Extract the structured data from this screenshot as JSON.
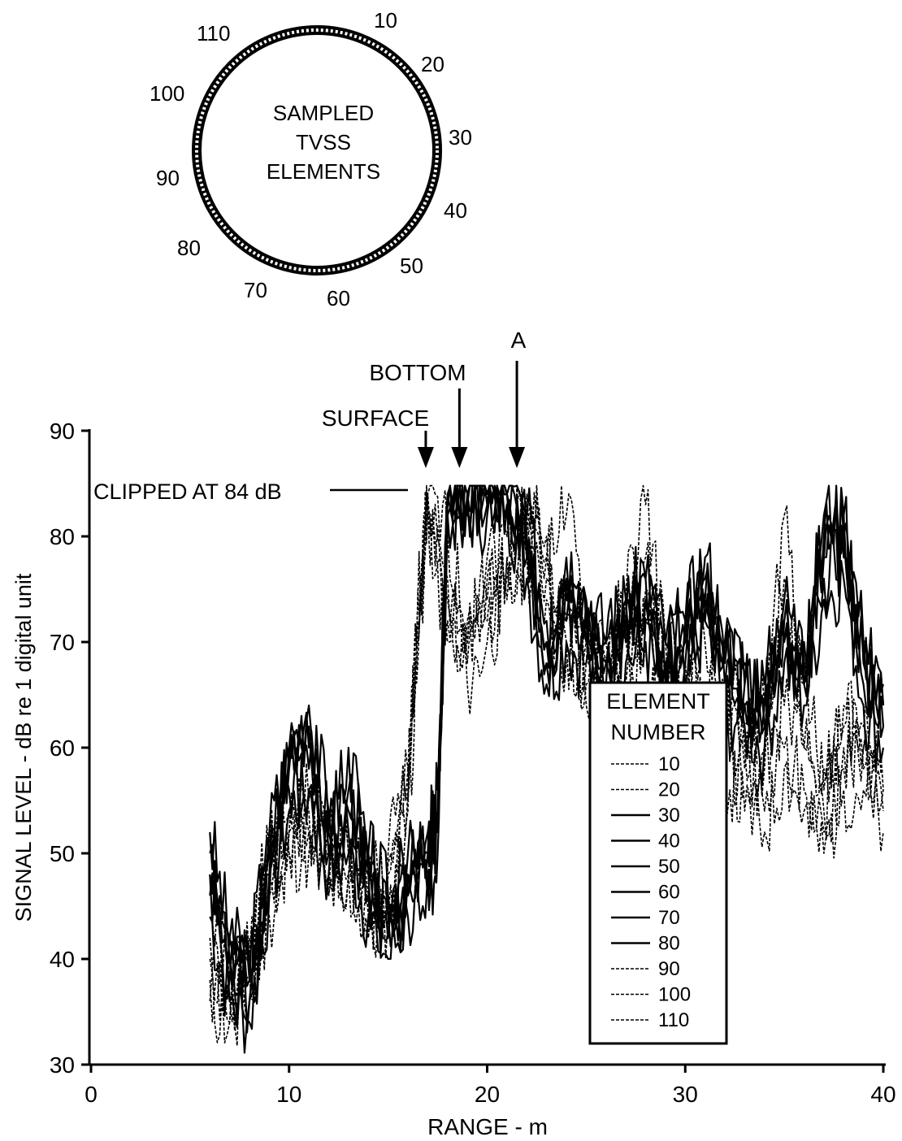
{
  "inset": {
    "title_lines": [
      "SAMPLED",
      "TVSS",
      "ELEMENTS"
    ],
    "element_labels": [
      "10",
      "20",
      "30",
      "40",
      "50",
      "60",
      "70",
      "80",
      "90",
      "100",
      "110"
    ]
  },
  "annotations": {
    "surface": "SURFACE",
    "bottom": "BOTTOM",
    "a": "A",
    "clipped": "CLIPPED AT 84 dB"
  },
  "legend": {
    "title_lines": [
      "ELEMENT",
      "NUMBER"
    ]
  },
  "chart_data": {
    "type": "line",
    "title": "",
    "xlabel": "RANGE  -  m",
    "ylabel": "SIGNAL LEVEL  -  dB re 1 digital unit",
    "xlim": [
      0,
      40
    ],
    "ylim": [
      30,
      90
    ],
    "x_ticks": [
      0,
      10,
      20,
      30,
      40
    ],
    "y_ticks": [
      30,
      40,
      50,
      60,
      70,
      80,
      90
    ],
    "grid": false,
    "legend_position": "lower-right",
    "clip_level": 84,
    "markers": [
      {
        "label": "SURFACE",
        "x": 16.9
      },
      {
        "label": "BOTTOM",
        "x": 18.6
      },
      {
        "label": "A",
        "x": 21.5
      }
    ],
    "series": [
      {
        "name": "10",
        "style": "dashed",
        "x": [
          6,
          7,
          8,
          9,
          10,
          11,
          12,
          13,
          14,
          15,
          16,
          16.5,
          17,
          18,
          19,
          20,
          21,
          22,
          23,
          24,
          25,
          26,
          27,
          28,
          29,
          30,
          31,
          32,
          33,
          34,
          35,
          36,
          37,
          38,
          39,
          40
        ],
        "y": [
          44,
          38,
          42,
          50,
          54,
          55,
          52,
          50,
          48,
          49,
          55,
          70,
          84,
          80,
          72,
          78,
          80,
          84,
          78,
          72,
          70,
          68,
          72,
          75,
          65,
          68,
          70,
          66,
          62,
          58,
          64,
          60,
          56,
          60,
          62,
          58
        ]
      },
      {
        "name": "20",
        "style": "dashed",
        "x": [
          6,
          7,
          8,
          9,
          10,
          11,
          12,
          13,
          14,
          15,
          16,
          16.5,
          17,
          18,
          19,
          20,
          21,
          22,
          23,
          24,
          25,
          26,
          27,
          28,
          29,
          30,
          31,
          32,
          33,
          34,
          35,
          36,
          37,
          38,
          39,
          40
        ],
        "y": [
          40,
          36,
          40,
          48,
          52,
          54,
          50,
          48,
          46,
          50,
          58,
          75,
          83,
          74,
          70,
          76,
          78,
          83,
          80,
          82,
          72,
          70,
          74,
          83,
          70,
          66,
          64,
          62,
          60,
          64,
          82,
          66,
          58,
          64,
          60,
          56
        ]
      },
      {
        "name": "30",
        "style": "solid",
        "x": [
          6,
          7,
          8,
          9,
          10,
          11,
          12,
          13,
          14,
          15,
          16,
          17,
          17.5,
          18,
          19,
          20,
          21,
          22,
          23,
          24,
          25,
          26,
          27,
          28,
          29,
          30,
          31,
          32,
          33,
          34,
          35,
          36,
          37,
          38,
          39,
          40
        ],
        "y": [
          52,
          42,
          40,
          52,
          60,
          64,
          54,
          56,
          50,
          46,
          48,
          50,
          54,
          84,
          83,
          84,
          84,
          82,
          72,
          76,
          74,
          70,
          74,
          76,
          70,
          72,
          74,
          70,
          68,
          66,
          74,
          70,
          80,
          82,
          70,
          66
        ]
      },
      {
        "name": "40",
        "style": "solid",
        "x": [
          6,
          7,
          8,
          9,
          10,
          11,
          12,
          13,
          14,
          15,
          16,
          17,
          17.5,
          18,
          19,
          20,
          21,
          22,
          23,
          24,
          25,
          26,
          27,
          28,
          29,
          30,
          31,
          32,
          33,
          34,
          35,
          36,
          37,
          38,
          39,
          40
        ],
        "y": [
          48,
          40,
          38,
          50,
          58,
          56,
          52,
          54,
          48,
          44,
          50,
          52,
          56,
          83,
          84,
          83,
          84,
          80,
          70,
          74,
          72,
          68,
          72,
          74,
          68,
          70,
          72,
          68,
          66,
          64,
          72,
          68,
          78,
          80,
          68,
          64
        ]
      },
      {
        "name": "50",
        "style": "solid",
        "x": [
          6,
          7,
          8,
          9,
          10,
          11,
          12,
          13,
          14,
          15,
          16,
          17,
          17.5,
          18,
          19,
          20,
          21,
          22,
          23,
          24,
          25,
          26,
          27,
          28,
          29,
          30,
          31,
          32,
          33,
          34,
          35,
          36,
          37,
          38,
          39,
          40
        ],
        "y": [
          46,
          38,
          36,
          48,
          56,
          58,
          50,
          52,
          46,
          42,
          48,
          50,
          54,
          82,
          83,
          84,
          83,
          78,
          68,
          72,
          70,
          66,
          70,
          72,
          66,
          68,
          76,
          66,
          64,
          62,
          70,
          66,
          76,
          78,
          66,
          62
        ]
      },
      {
        "name": "60",
        "style": "solid",
        "x": [
          6,
          7,
          8,
          9,
          10,
          11,
          12,
          13,
          14,
          15,
          16,
          17,
          17.5,
          18,
          19,
          20,
          21,
          22,
          23,
          24,
          25,
          26,
          27,
          28,
          29,
          30,
          31,
          32,
          33,
          34,
          35,
          36,
          37,
          38,
          39,
          40
        ],
        "y": [
          50,
          42,
          38,
          50,
          60,
          62,
          52,
          60,
          50,
          44,
          46,
          48,
          52,
          84,
          84,
          83,
          84,
          80,
          70,
          78,
          74,
          70,
          74,
          76,
          70,
          72,
          78,
          70,
          66,
          64,
          72,
          68,
          82,
          82,
          70,
          64
        ]
      },
      {
        "name": "70",
        "style": "solid",
        "x": [
          6,
          7,
          8,
          9,
          10,
          11,
          12,
          13,
          14,
          15,
          16,
          17,
          17.5,
          18,
          19,
          20,
          21,
          22,
          23,
          24,
          25,
          26,
          27,
          28,
          29,
          30,
          31,
          32,
          33,
          34,
          35,
          36,
          37,
          38,
          39,
          40
        ],
        "y": [
          44,
          36,
          34,
          46,
          54,
          56,
          48,
          50,
          44,
          40,
          44,
          46,
          50,
          82,
          82,
          82,
          83,
          76,
          66,
          70,
          68,
          64,
          68,
          70,
          64,
          66,
          72,
          64,
          62,
          60,
          68,
          64,
          74,
          76,
          64,
          60
        ]
      },
      {
        "name": "80",
        "style": "solid",
        "x": [
          6,
          7,
          8,
          9,
          10,
          11,
          12,
          13,
          14,
          15,
          16,
          17,
          17.5,
          18,
          19,
          20,
          21,
          22,
          23,
          24,
          25,
          26,
          27,
          28,
          29,
          30,
          31,
          32,
          33,
          34,
          35,
          36,
          37,
          38,
          39,
          40
        ],
        "y": [
          48,
          40,
          36,
          48,
          58,
          60,
          50,
          54,
          48,
          42,
          46,
          48,
          52,
          83,
          84,
          84,
          84,
          78,
          68,
          74,
          72,
          68,
          72,
          74,
          68,
          70,
          74,
          68,
          64,
          62,
          70,
          66,
          78,
          80,
          68,
          62
        ]
      },
      {
        "name": "90",
        "style": "dashed",
        "x": [
          6,
          7,
          8,
          9,
          10,
          11,
          12,
          13,
          14,
          15,
          16,
          16.5,
          17,
          18,
          19,
          20,
          21,
          22,
          23,
          24,
          25,
          26,
          27,
          28,
          29,
          30,
          31,
          32,
          33,
          34,
          35,
          36,
          37,
          38,
          39,
          40
        ],
        "y": [
          42,
          36,
          40,
          50,
          52,
          52,
          48,
          50,
          44,
          46,
          56,
          72,
          84,
          76,
          68,
          74,
          78,
          82,
          78,
          70,
          66,
          64,
          68,
          72,
          62,
          64,
          66,
          62,
          58,
          54,
          60,
          56,
          52,
          58,
          60,
          56
        ]
      },
      {
        "name": "100",
        "style": "dashed",
        "x": [
          6,
          7,
          8,
          9,
          10,
          11,
          12,
          13,
          14,
          15,
          16,
          16.5,
          17,
          18,
          19,
          20,
          21,
          22,
          23,
          24,
          25,
          26,
          27,
          28,
          29,
          30,
          31,
          32,
          33,
          34,
          35,
          36,
          37,
          38,
          39,
          40
        ],
        "y": [
          38,
          34,
          38,
          46,
          50,
          52,
          46,
          48,
          42,
          48,
          58,
          74,
          82,
          72,
          70,
          72,
          76,
          80,
          76,
          76,
          68,
          66,
          70,
          78,
          66,
          62,
          62,
          60,
          56,
          60,
          76,
          60,
          54,
          62,
          58,
          54
        ]
      },
      {
        "name": "110",
        "style": "dashed",
        "x": [
          6,
          7,
          8,
          9,
          10,
          11,
          12,
          13,
          14,
          15,
          16,
          16.5,
          17,
          18,
          19,
          20,
          21,
          22,
          23,
          24,
          25,
          26,
          27,
          28,
          29,
          30,
          31,
          32,
          33,
          34,
          35,
          36,
          37,
          38,
          39,
          40
        ],
        "y": [
          36,
          34,
          36,
          44,
          50,
          50,
          46,
          48,
          42,
          44,
          54,
          68,
          82,
          70,
          66,
          70,
          74,
          78,
          74,
          68,
          64,
          62,
          66,
          70,
          60,
          60,
          62,
          58,
          54,
          52,
          58,
          54,
          50,
          56,
          56,
          52
        ]
      }
    ]
  }
}
